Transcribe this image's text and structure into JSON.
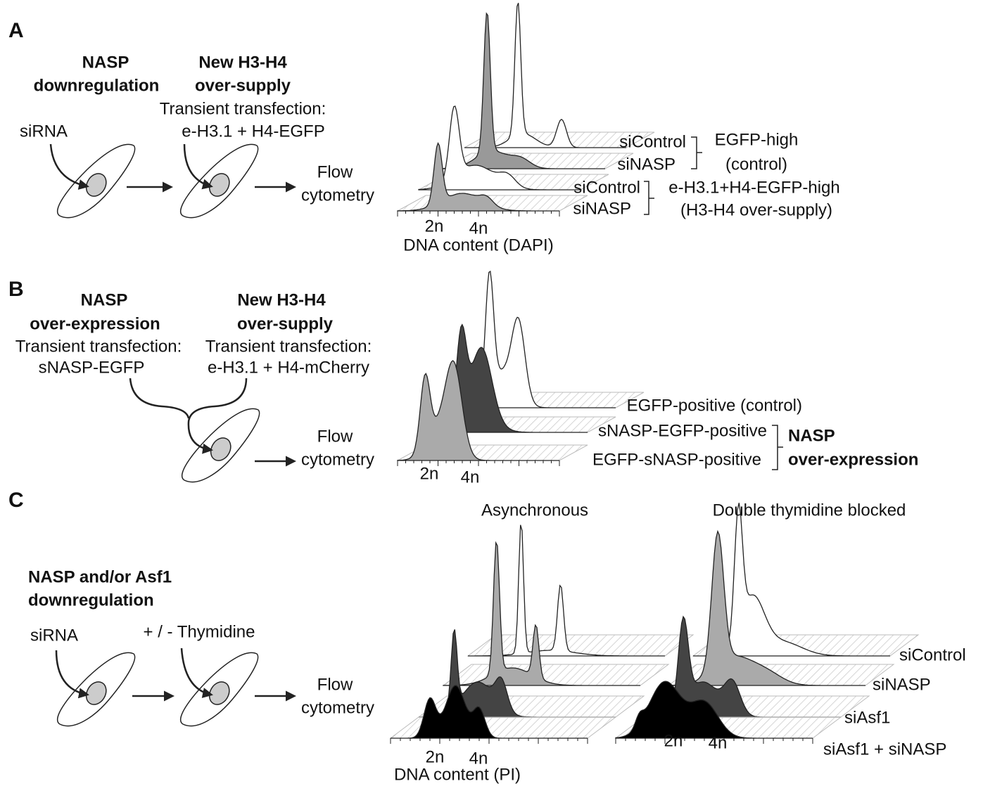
{
  "panel_a": {
    "letter": "A",
    "step1_title": [
      "NASP",
      "downregulation"
    ],
    "step1_agent": "siRNA",
    "step2_title": [
      "New H3-H4",
      "over-supply"
    ],
    "step2_method": [
      "Transient transfection:",
      "e-H3.1 + H4-EGFP"
    ],
    "readout": [
      "Flow",
      "cytometry"
    ],
    "tracks": [
      "siControl",
      "siNASP",
      "siControl",
      "siNASP"
    ],
    "group1": [
      "EGFP-high",
      "(control)"
    ],
    "group2": [
      "e-H3.1+H4-EGFP-high",
      "(H3-H4 over-supply)"
    ],
    "ticks": [
      "2n",
      "4n"
    ],
    "axis_label": "DNA content (DAPI)"
  },
  "panel_b": {
    "letter": "B",
    "step1_title": [
      "NASP",
      "over-expression"
    ],
    "step1_method": [
      "Transient transfection:",
      "sNASP-EGFP"
    ],
    "step2_title": [
      "New H3-H4",
      "over-supply"
    ],
    "step2_method": [
      "Transient transfection:",
      "e-H3.1 + H4-mCherry"
    ],
    "readout": [
      "Flow",
      "cytometry"
    ],
    "tracks": [
      "EGFP-positive (control)",
      "sNASP-EGFP-positive",
      "EGFP-sNASP-positive"
    ],
    "group": [
      "NASP",
      "over-expression"
    ],
    "ticks": [
      "2n",
      "4n"
    ]
  },
  "panel_c": {
    "letter": "C",
    "step1_title": [
      "NASP and/or Asf1",
      "downregulation"
    ],
    "step1_agent": "siRNA",
    "step2_agent": "+ / - Thymidine",
    "readout": [
      "Flow",
      "cytometry"
    ],
    "chart_titles": [
      "Asynchronous",
      "Double thymidine blocked"
    ],
    "tracks": [
      "siControl",
      "siNASP",
      "siAsf1",
      "siAsf1 + siNASP"
    ],
    "ticks": [
      "2n",
      "4n"
    ],
    "axis_label": "DNA content (PI)"
  }
}
